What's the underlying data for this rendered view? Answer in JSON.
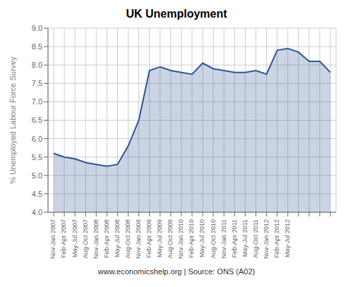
{
  "chart_data": {
    "type": "area",
    "title": "UK Unemployment",
    "ylabel": "% Unemployed Labour Force Survey",
    "footer": "www.economicshelp.org | Source: ONS (A02)",
    "categories": [
      "Nov-Jan 2007",
      "Feb-Apr 2007",
      "May-Jul 2007",
      "Aug-Oct 2007",
      "Nov-Jan 2008",
      "Feb-Apr 2008",
      "May-Jul 2008",
      "Aug-Oct 2008",
      "Nov-Jan 2009",
      "Feb-Apr 2009",
      "May-Jul 2009",
      "Aug-Oct 2009",
      "Nov-Jan 2010",
      "Feb-Apr 2010",
      "May-Jul 2010",
      "Aug-Oct 2010",
      "Nov-Jan 2011",
      "Feb-Apr 2011",
      "May-Jul 2011",
      "Aug-Oct 2011",
      "Nov-Jan 2012",
      "Feb-Apr 2012",
      "May-Jul 2012",
      null,
      null,
      null,
      null
    ],
    "values": [
      5.6,
      5.5,
      5.45,
      5.35,
      5.3,
      5.25,
      5.3,
      5.8,
      6.5,
      7.85,
      7.95,
      7.85,
      7.8,
      7.75,
      8.05,
      7.9,
      7.85,
      7.8,
      7.8,
      7.85,
      7.75,
      8.4,
      8.45,
      8.35,
      8.1,
      8.1,
      7.8
    ],
    "color": "#2f5597",
    "ylim": [
      4,
      9
    ],
    "yticks": [
      {
        "value": 4,
        "label": "4.0"
      },
      4.5,
      {
        "value": 5,
        "label": "5.0"
      },
      5.5,
      {
        "value": 6,
        "label": "6.0"
      },
      6.5,
      {
        "value": 7,
        "label": "7.0"
      },
      7.5,
      {
        "value": 8,
        "label": "8.0"
      },
      8.5,
      {
        "value": 9,
        "label": "9.0"
      }
    ],
    "grid": true
  }
}
